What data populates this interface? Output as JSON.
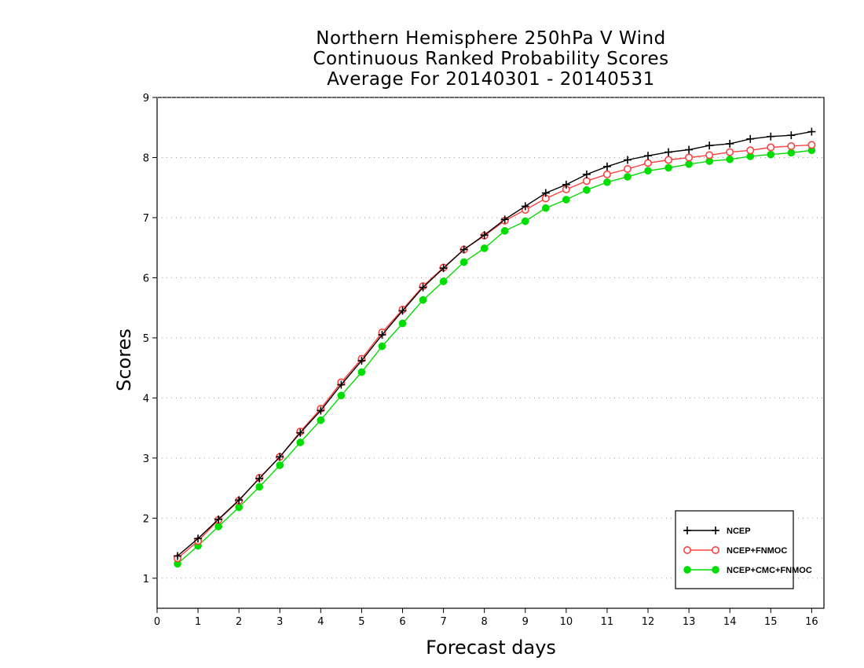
{
  "chart_data": {
    "type": "line",
    "title_lines": [
      "Northern Hemisphere 250hPa V Wind",
      "Continuous Ranked Probability Scores",
      "Average For 20140301 - 20140531"
    ],
    "xlabel": "Forecast days",
    "ylabel": "Scores",
    "xlim": [
      0,
      16.3
    ],
    "ylim": [
      0.5,
      9
    ],
    "xticks": [
      "0",
      "1",
      "2",
      "3",
      "4",
      "5",
      "6",
      "7",
      "8",
      "9",
      "10",
      "11",
      "12",
      "13",
      "14",
      "15",
      "16"
    ],
    "yticks": [
      "1",
      "2",
      "3",
      "4",
      "5",
      "6",
      "7",
      "8",
      "9"
    ],
    "grid": "horizontal dotted",
    "legend_position": "bottom-right",
    "x": [
      0.5,
      1,
      1.5,
      2,
      2.5,
      3,
      3.5,
      4,
      4.5,
      5,
      5.5,
      6,
      6.5,
      7,
      7.5,
      8,
      8.5,
      9,
      9.5,
      10,
      10.5,
      11,
      11.5,
      12,
      12.5,
      13,
      13.5,
      14,
      14.5,
      15,
      15.5,
      16
    ],
    "series": [
      {
        "name": "NCEP",
        "color": "#000000",
        "marker": "plus",
        "values": [
          1.37,
          1.66,
          1.98,
          2.3,
          2.66,
          3.02,
          3.42,
          3.79,
          4.22,
          4.62,
          5.05,
          5.45,
          5.84,
          6.16,
          6.47,
          6.71,
          6.97,
          7.19,
          7.41,
          7.55,
          7.72,
          7.85,
          7.96,
          8.03,
          8.09,
          8.13,
          8.2,
          8.23,
          8.31,
          8.35,
          8.37,
          8.43
        ]
      },
      {
        "name": "NCEP+FNMOC",
        "color": "#ff4040",
        "marker": "open-circle",
        "values": [
          1.33,
          1.62,
          1.97,
          2.29,
          2.67,
          3.02,
          3.44,
          3.82,
          4.26,
          4.65,
          5.09,
          5.47,
          5.86,
          6.17,
          6.47,
          6.7,
          6.95,
          7.13,
          7.32,
          7.47,
          7.61,
          7.72,
          7.81,
          7.91,
          7.96,
          8.0,
          8.04,
          8.09,
          8.12,
          8.17,
          8.19,
          8.21
        ]
      },
      {
        "name": "NCEP+CMC+FNMOC",
        "color": "#00dd00",
        "marker": "filled-circle",
        "values": [
          1.24,
          1.54,
          1.86,
          2.18,
          2.52,
          2.88,
          3.26,
          3.63,
          4.04,
          4.43,
          4.86,
          5.24,
          5.63,
          5.94,
          6.26,
          6.49,
          6.78,
          6.94,
          7.16,
          7.3,
          7.46,
          7.59,
          7.68,
          7.78,
          7.83,
          7.89,
          7.94,
          7.97,
          8.02,
          8.05,
          8.08,
          8.12
        ]
      }
    ]
  }
}
